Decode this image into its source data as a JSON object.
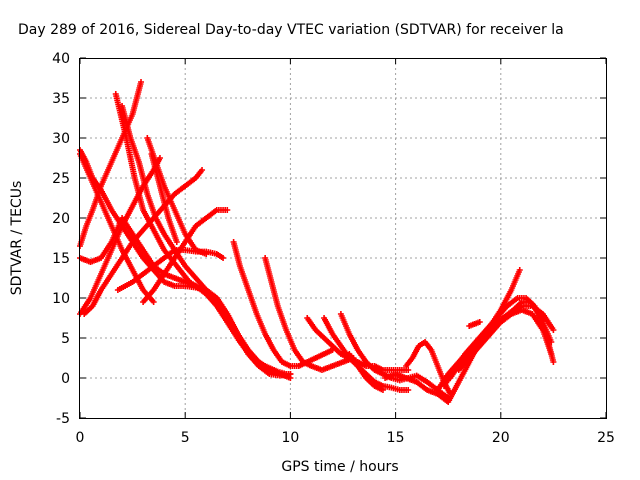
{
  "chart_data": {
    "type": "scatter",
    "title": "Day 289 of 2016, Sidereal Day-to-day VTEC variation (SDTVAR) for receiver la",
    "xlabel": "GPS time / hours",
    "ylabel": "SDTVAR / TECUs",
    "xlim": [
      0,
      25
    ],
    "ylim": [
      -5,
      40
    ],
    "x_ticks": [
      "0",
      "5",
      "10",
      "15",
      "20",
      "25"
    ],
    "y_ticks": [
      "-5",
      "0",
      "5",
      "10",
      "15",
      "20",
      "25",
      "30",
      "35",
      "40"
    ],
    "grid": true,
    "marker": "+",
    "color": "#ff0000",
    "series": [
      {
        "x": [
          1.7,
          2.2,
          2.6,
          3.0,
          3.5,
          4.0,
          4.6,
          5.2,
          5.8,
          6.4,
          7.0,
          7.6,
          8.2,
          8.8,
          9.4,
          9.8
        ],
        "y": [
          35.5,
          30,
          25,
          21,
          18.5,
          16,
          14,
          12,
          11,
          9.5,
          7,
          4.5,
          2.5,
          1.5,
          0.8,
          0.5
        ]
      },
      {
        "x": [
          2.0,
          2.4,
          2.8,
          3.2,
          3.6,
          4.0,
          4.5,
          5.0,
          5.5,
          6.0,
          6.5,
          7.0,
          7.5,
          8.0,
          8.5,
          9.0,
          9.5,
          10.0
        ],
        "y": [
          34,
          30,
          27,
          23,
          20,
          18,
          16,
          14,
          12.5,
          11,
          10,
          8,
          5.5,
          3.5,
          2,
          1,
          0.5,
          0
        ]
      },
      {
        "x": [
          0.0,
          0.3,
          0.6,
          1.0,
          1.5,
          2.0,
          2.5,
          3.0,
          3.5,
          4.0,
          4.5,
          5.0,
          5.5,
          6.0,
          6.5,
          7.0,
          7.5,
          8.0,
          8.5,
          9.0,
          9.5,
          10.0
        ],
        "y": [
          28.5,
          27,
          25,
          23.5,
          21,
          19,
          17,
          15,
          13.5,
          12,
          11.5,
          11.5,
          11.3,
          11,
          10,
          8,
          5.5,
          3,
          1.5,
          0.5,
          0.3,
          0.5
        ]
      },
      {
        "x": [
          0.0,
          0.5,
          1.0,
          1.5,
          2.0,
          2.5,
          3.0,
          3.5
        ],
        "y": [
          28,
          25,
          22,
          19,
          16,
          13.5,
          11,
          9.5
        ]
      },
      {
        "x": [
          0.0,
          0.5,
          1.0,
          1.5,
          2.0,
          2.5,
          3.0,
          3.5,
          4.0,
          4.5,
          5.0,
          5.5,
          6.0,
          6.5,
          7.0,
          7.5,
          8.0,
          8.5,
          9.0,
          9.5,
          10.0
        ],
        "y": [
          15,
          14.5,
          15,
          17,
          20,
          18,
          16,
          14,
          13,
          12.5,
          12,
          11.5,
          10.5,
          9,
          7,
          5,
          3,
          1.5,
          1,
          0.5,
          0.5
        ]
      },
      {
        "x": [
          0.0,
          0.3,
          0.6,
          1.0,
          1.5,
          2.0,
          2.5,
          2.9
        ],
        "y": [
          16.5,
          19,
          21,
          24,
          27,
          30,
          33,
          37
        ]
      },
      {
        "x": [
          0.0,
          0.5,
          1.0,
          1.5,
          2.0,
          2.5,
          3.0,
          3.5,
          3.8
        ],
        "y": [
          8,
          10,
          13,
          16,
          19,
          21.5,
          24,
          26,
          27.5
        ]
      },
      {
        "x": [
          0.2,
          0.6,
          1.0,
          1.5,
          2.0,
          2.5,
          3.0,
          3.5,
          4.0,
          4.5,
          5.0,
          5.5,
          5.8
        ],
        "y": [
          8,
          9,
          11,
          13,
          15,
          17,
          18.5,
          20,
          21.5,
          23,
          24,
          25,
          26
        ]
      },
      {
        "x": [
          3.0,
          3.5,
          4.0,
          4.5,
          5.0,
          5.5,
          6.0,
          6.5,
          7.0
        ],
        "y": [
          9.5,
          11,
          13,
          15,
          17,
          19,
          20,
          21,
          21
        ]
      },
      {
        "x": [
          1.8,
          2.5,
          3.0,
          3.5,
          4.0,
          4.5,
          5.0,
          5.5,
          6.0,
          6.5,
          6.8
        ],
        "y": [
          11,
          12,
          13,
          14,
          15,
          16,
          16,
          15.8,
          15.8,
          15.5,
          15
        ]
      },
      {
        "x": [
          3.2,
          3.6,
          4.0,
          4.5,
          5.0,
          5.5,
          6.0
        ],
        "y": [
          30,
          27,
          24,
          21,
          18,
          16,
          15.5
        ]
      },
      {
        "x": [
          3.4,
          3.8,
          4.2,
          4.6
        ],
        "y": [
          28,
          24,
          20,
          17
        ]
      },
      {
        "x": [
          7.3,
          7.6,
          8.0,
          8.4,
          8.8,
          9.2,
          9.6,
          10.0,
          10.4,
          10.8,
          11.2,
          11.6,
          12.0
        ],
        "y": [
          17,
          14,
          11,
          8,
          5.5,
          3.5,
          2,
          1.5,
          1.5,
          2,
          2.5,
          3,
          3.5
        ]
      },
      {
        "x": [
          8.8,
          9.1,
          9.4,
          9.8,
          10.2,
          10.6,
          11.0,
          11.5,
          12.0,
          12.5,
          13.0
        ],
        "y": [
          15,
          12,
          9,
          6,
          3.5,
          2,
          1.5,
          1,
          1.5,
          2,
          2.5
        ]
      },
      {
        "x": [
          10.8,
          11.2,
          11.6,
          12.0,
          12.4,
          12.8,
          13.2,
          13.6,
          14.0,
          14.4,
          14.8,
          15.2,
          15.6
        ],
        "y": [
          7.5,
          6,
          5,
          4,
          3,
          2.5,
          2,
          1.5,
          1.5,
          1,
          1,
          1,
          1
        ]
      },
      {
        "x": [
          11.6,
          12.0,
          12.4,
          12.8,
          13.2,
          13.6,
          14.0,
          14.4,
          14.8,
          15.2,
          15.6
        ],
        "y": [
          7.5,
          5.5,
          4,
          2.5,
          1.5,
          0.5,
          -0.5,
          -1,
          -1.2,
          -1.5,
          -1.5
        ]
      },
      {
        "x": [
          12.4,
          12.8,
          13.2,
          13.6,
          14.0,
          14.4,
          14.8,
          15.2,
          15.6,
          16.0,
          16.5,
          17.0,
          17.5
        ],
        "y": [
          8,
          5.5,
          3.5,
          2,
          1,
          0.5,
          0,
          -0.3,
          0,
          0.3,
          -0.5,
          -1.5,
          -2.5
        ]
      },
      {
        "x": [
          12.8,
          13.2,
          13.6,
          14.0,
          14.4
        ],
        "y": [
          3,
          1.5,
          0,
          -1,
          -1.5
        ]
      },
      {
        "x": [
          15.5,
          15.8,
          16.1,
          16.4,
          16.7,
          17.0,
          17.3,
          17.6
        ],
        "y": [
          1.5,
          2.5,
          4,
          4.5,
          3.5,
          1.5,
          -0.5,
          -2
        ]
      },
      {
        "x": [
          14.5,
          15.0,
          15.5,
          16.0,
          16.5,
          17.0,
          17.5,
          18.0,
          18.5,
          19.0,
          19.5,
          20.0,
          20.5,
          20.9
        ],
        "y": [
          0,
          0.5,
          0,
          -0.5,
          -1.5,
          -2,
          -3,
          -0.5,
          2,
          4.5,
          6.5,
          8.5,
          11,
          13.5
        ]
      },
      {
        "x": [
          17.0,
          17.5,
          18.0,
          18.5,
          19.0,
          19.5,
          20.0,
          20.5,
          21.0,
          21.5,
          22.0,
          22.4
        ],
        "y": [
          -1.5,
          0.5,
          2,
          3.5,
          5,
          6,
          7,
          8,
          8.5,
          8,
          6,
          3
        ]
      },
      {
        "x": [
          17.3,
          17.8,
          18.3,
          18.8,
          19.3,
          19.8,
          20.3,
          20.8,
          21.2,
          21.6,
          22.0,
          22.4
        ],
        "y": [
          -1,
          1,
          3,
          4.5,
          6,
          7.5,
          9,
          10,
          10,
          9,
          7,
          4.5
        ]
      },
      {
        "x": [
          17.6,
          18.1,
          18.6,
          19.1,
          19.6,
          20.1,
          20.6,
          21.0,
          21.4,
          21.8,
          22.2,
          22.5
        ],
        "y": [
          0,
          2,
          3.5,
          5,
          6.5,
          7.5,
          8.5,
          9.5,
          9.5,
          8,
          5,
          2
        ]
      },
      {
        "x": [
          18.0,
          18.5,
          19.0,
          19.5,
          20.0,
          20.5,
          21.0,
          21.5,
          22.0,
          22.5
        ],
        "y": [
          1,
          2.5,
          4,
          5.5,
          7,
          8,
          9,
          9,
          8,
          6
        ]
      },
      {
        "x": [
          18.5,
          19.0
        ],
        "y": [
          6.5,
          7
        ]
      }
    ]
  }
}
